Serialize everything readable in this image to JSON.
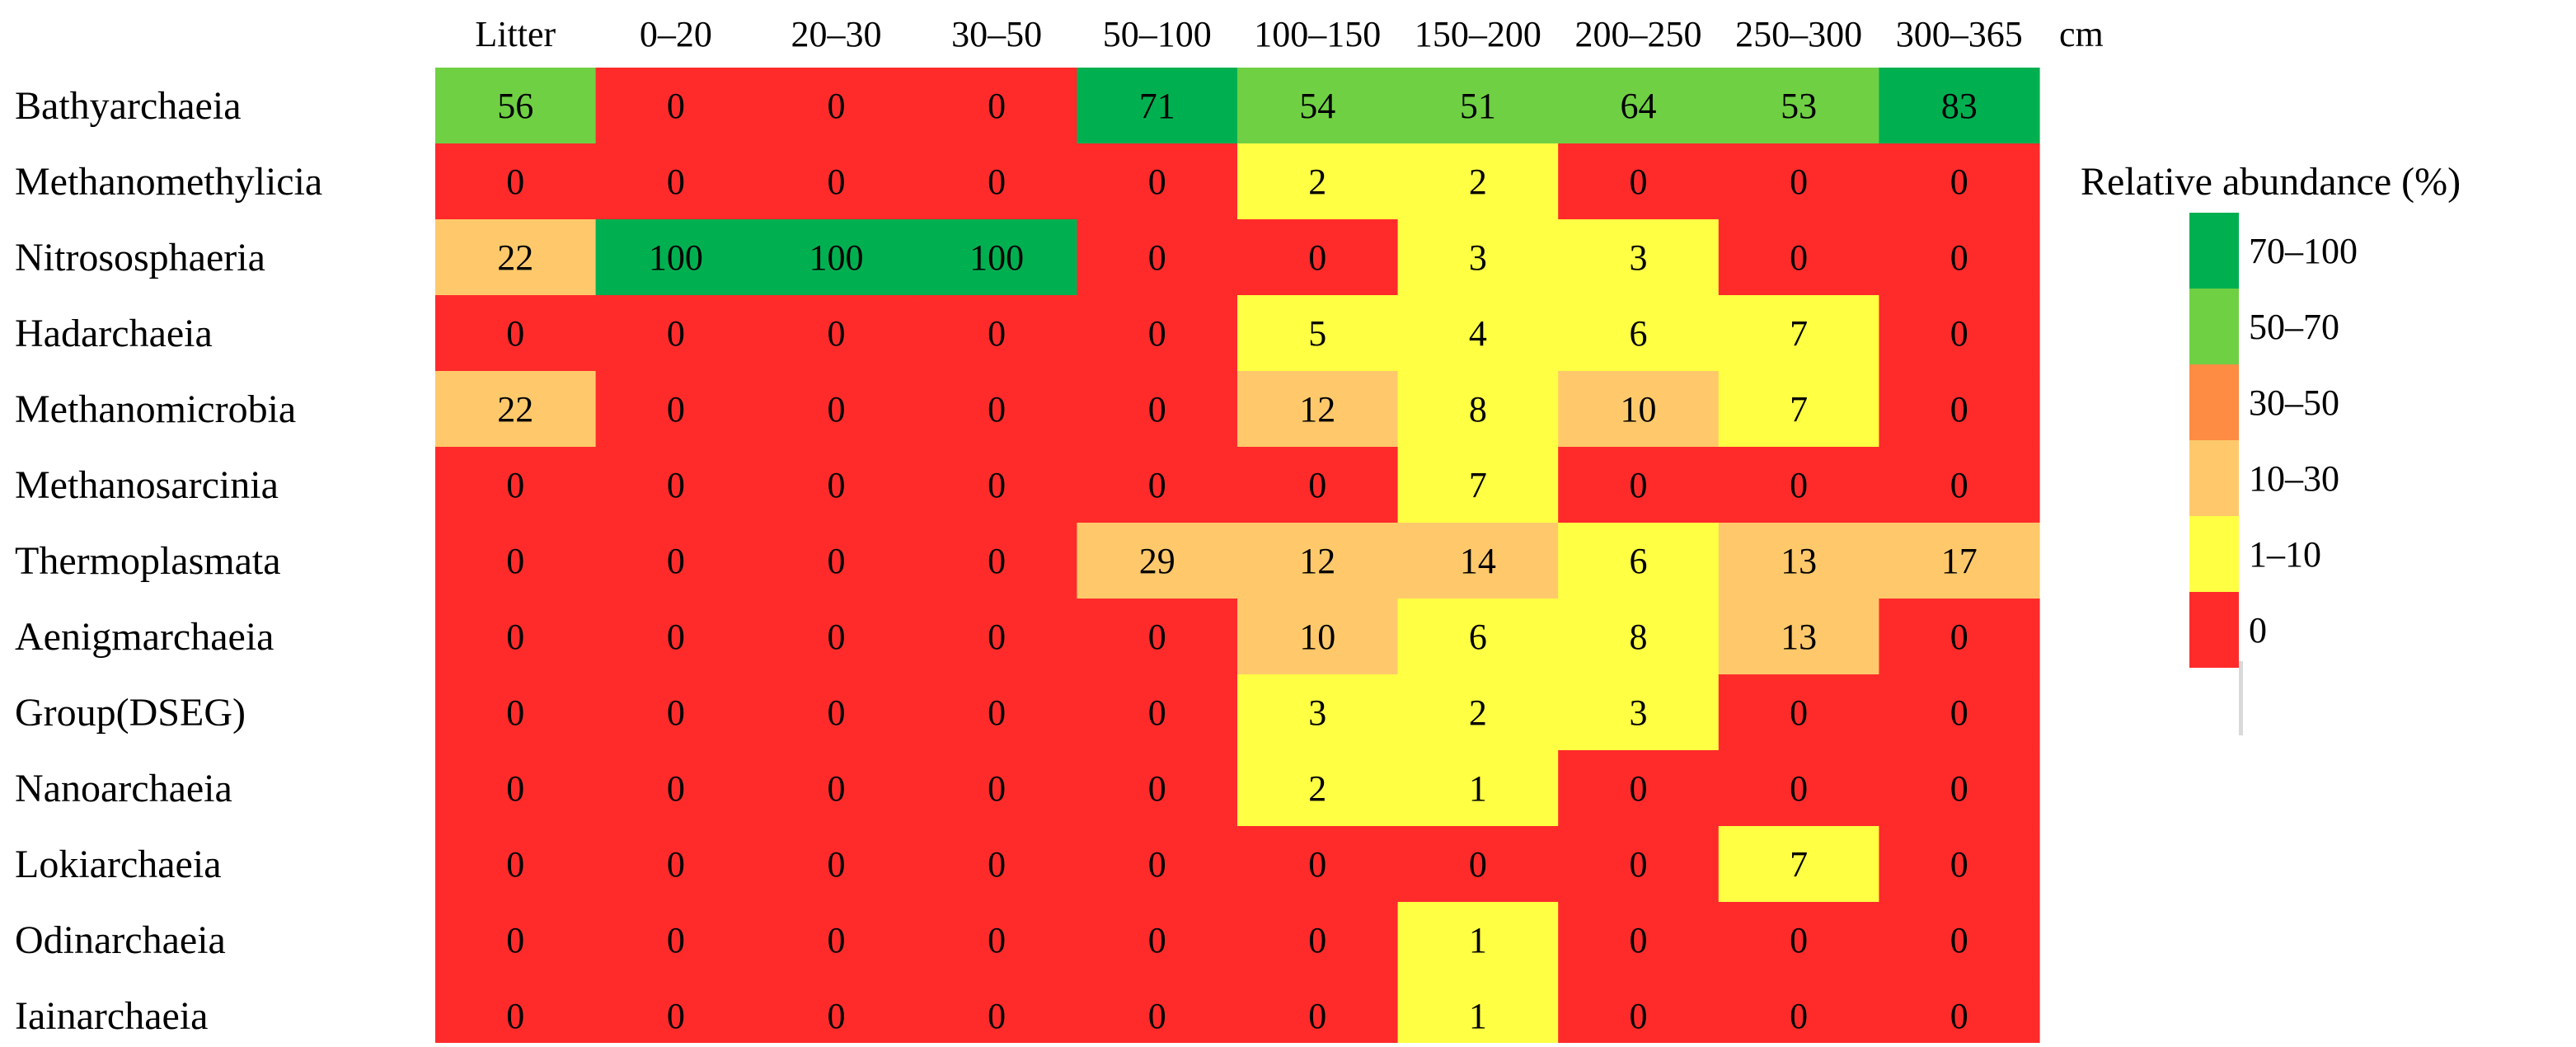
{
  "chart_data": {
    "type": "heatmap",
    "columns": [
      "Litter",
      "0–20",
      "20–30",
      "30–50",
      "50–100",
      "100–150",
      "150–200",
      "200–250",
      "250–300",
      "300–365"
    ],
    "column_unit": "cm",
    "rows": [
      "Bathyarchaeia",
      "Methanomethylicia",
      "Nitrososphaeria",
      "Hadarchaeia",
      "Methanomicrobia",
      "Methanosarcinia",
      "Thermoplasmata",
      "Aenigmarchaeia",
      "Group(DSEG)",
      "Nanoarchaeia",
      "Lokiarchaeia",
      "Odinarchaeia",
      "Iainarchaeia"
    ],
    "values": [
      [
        56,
        0,
        0,
        0,
        71,
        54,
        51,
        64,
        53,
        83
      ],
      [
        0,
        0,
        0,
        0,
        0,
        2,
        2,
        0,
        0,
        0
      ],
      [
        22,
        100,
        100,
        100,
        0,
        0,
        3,
        3,
        0,
        0
      ],
      [
        0,
        0,
        0,
        0,
        0,
        5,
        4,
        6,
        7,
        0
      ],
      [
        22,
        0,
        0,
        0,
        0,
        12,
        8,
        10,
        7,
        0
      ],
      [
        0,
        0,
        0,
        0,
        0,
        0,
        7,
        0,
        0,
        0
      ],
      [
        0,
        0,
        0,
        0,
        29,
        12,
        14,
        6,
        13,
        17
      ],
      [
        0,
        0,
        0,
        0,
        0,
        10,
        6,
        8,
        13,
        0
      ],
      [
        0,
        0,
        0,
        0,
        0,
        3,
        2,
        3,
        0,
        0
      ],
      [
        0,
        0,
        0,
        0,
        0,
        2,
        1,
        0,
        0,
        0
      ],
      [
        0,
        0,
        0,
        0,
        0,
        0,
        0,
        0,
        7,
        0
      ],
      [
        0,
        0,
        0,
        0,
        0,
        0,
        1,
        0,
        0,
        0
      ],
      [
        0,
        0,
        0,
        0,
        0,
        0,
        1,
        0,
        0,
        0
      ]
    ],
    "legend": {
      "title": "Relative abundance (%)",
      "bins": [
        {
          "label": "70–100",
          "min": 70,
          "max": 100,
          "color": "#00b050"
        },
        {
          "label": "50–70",
          "min": 50,
          "max": 70,
          "color": "#6fd044"
        },
        {
          "label": "30–50",
          "min": 30,
          "max": 50,
          "color": "#ff8c42"
        },
        {
          "label": "10–30",
          "min": 10,
          "max": 30,
          "color": "#ffc96b"
        },
        {
          "label": "1–10",
          "min": 1,
          "max": 10,
          "color": "#ffff44"
        },
        {
          "label": "0",
          "min": 0,
          "max": 0,
          "color": "#ff2b2b"
        }
      ]
    }
  }
}
